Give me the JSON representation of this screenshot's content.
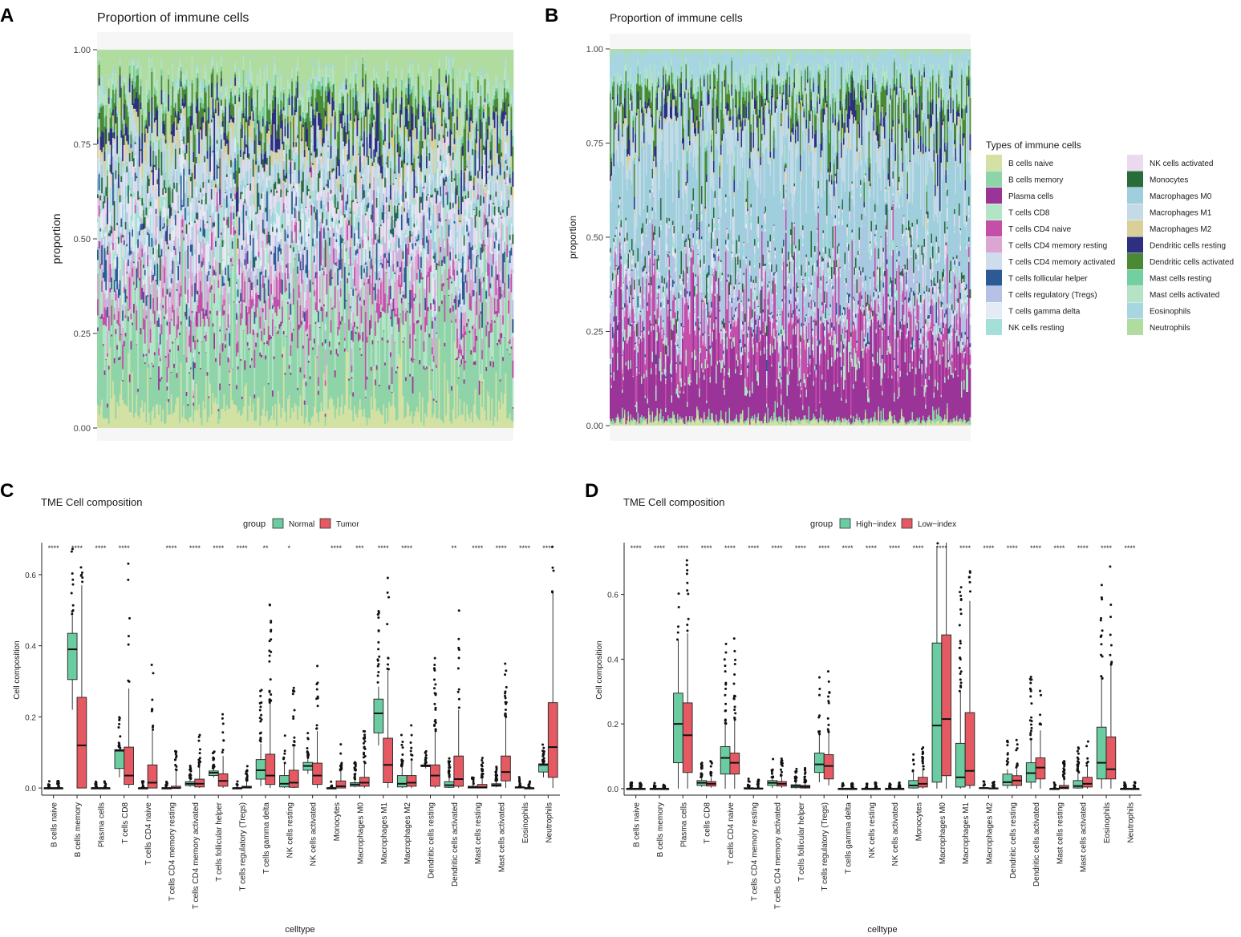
{
  "panel_labels": [
    "A",
    "B",
    "C",
    "D"
  ],
  "cell_types": [
    "B cells naive",
    "B cells memory",
    "Plasma cells",
    "T cells CD8",
    "T cells CD4 naive",
    "T cells CD4 memory resting",
    "T cells CD4 memory activated",
    "T cells follicular helper",
    "T cells regulatory (Tregs)",
    "T cells gamma delta",
    "NK cells resting",
    "NK cells activated",
    "Monocytes",
    "Macrophages M0",
    "Macrophages M1",
    "Macrophages M2",
    "Dendritic cells resting",
    "Dendritic cells activated",
    "Mast cells resting",
    "Mast cells activated",
    "Eosinophils",
    "Neutrophils"
  ],
  "legend": {
    "title": "Types of immune cells",
    "colors": [
      "#d3e1a3",
      "#8fd4a8",
      "#9a3498",
      "#b2e4c6",
      "#c44fab",
      "#dba6d2",
      "#cfdcee",
      "#2c5a94",
      "#b5c2e6",
      "#e3ecf5",
      "#a5dfda",
      "#ead9ef",
      "#2a6b3a",
      "#9fcedc",
      "#c2dbe6",
      "#dacf98",
      "#2e2f80",
      "#4a8a34",
      "#72cf9f",
      "#b6e3c5",
      "#a6d6e2",
      "#b0dca0"
    ]
  },
  "chart_data": [
    {
      "panel": "A",
      "type": "bar",
      "stacked": true,
      "title": "Proportion of immune cells",
      "xlabel": "",
      "ylabel": "proportion",
      "yticks": [
        "0.00",
        "0.25",
        "0.50",
        "0.75",
        "1.00"
      ],
      "ylim": [
        0,
        1
      ],
      "n_samples": 300,
      "mean_composition": [
        0.06,
        0.2,
        0.01,
        0.09,
        0.04,
        0.06,
        0.03,
        0.03,
        0.02,
        0.05,
        0.03,
        0.05,
        0.02,
        0.03,
        0.08,
        0.03,
        0.04,
        0.05,
        0.02,
        0.04,
        0.01,
        0.1
      ]
    },
    {
      "panel": "B",
      "type": "bar",
      "stacked": true,
      "title": "Proportion of immune cells",
      "xlabel": "",
      "ylabel": "proportion",
      "yticks": [
        "0.00",
        "0.25",
        "0.50",
        "0.75",
        "1.00"
      ],
      "ylim": [
        0,
        1
      ],
      "n_samples": 300,
      "mean_composition": [
        0.01,
        0.01,
        0.17,
        0.02,
        0.09,
        0.01,
        0.02,
        0.01,
        0.07,
        0.01,
        0.02,
        0.02,
        0.02,
        0.25,
        0.12,
        0.01,
        0.03,
        0.06,
        0.01,
        0.03,
        0.08,
        0.01
      ]
    },
    {
      "panel": "C",
      "type": "box",
      "title": "TME Cell composition",
      "xlabel": "celltype",
      "ylabel": "Cell composition",
      "yticks": [
        "0.0",
        "0.2",
        "0.4",
        "0.6"
      ],
      "ylim": [
        -0.02,
        0.69
      ],
      "legend_title": "group",
      "groups": [
        {
          "name": "Normal",
          "color": "#6ccca1"
        },
        {
          "name": "Tumor",
          "color": "#e55a62"
        }
      ],
      "significance": [
        "****",
        "****",
        "****",
        "****",
        "",
        "****",
        "****",
        "****",
        "****",
        "**",
        "*",
        "",
        "****",
        "***",
        "****",
        "****",
        "",
        "**",
        "****",
        "****",
        "****",
        "****"
      ],
      "series": [
        {
          "name": "Normal",
          "boxes": [
            [
              0,
              0,
              0,
              0,
              0
            ],
            [
              0.22,
              0.305,
              0.39,
              0.435,
              0.485
            ],
            [
              0,
              0,
              0,
              0,
              0
            ],
            [
              0.03,
              0.055,
              0.105,
              0.108,
              0.11
            ],
            [
              0,
              0,
              0,
              0,
              0
            ],
            [
              0,
              0,
              0,
              0,
              0
            ],
            [
              0.003,
              0.007,
              0.012,
              0.018,
              0.025
            ],
            [
              0.03,
              0.035,
              0.043,
              0.048,
              0.055
            ],
            [
              0,
              0,
              0,
              0,
              0
            ],
            [
              0.005,
              0.025,
              0.05,
              0.08,
              0.125
            ],
            [
              0,
              0.003,
              0.012,
              0.035,
              0.07
            ],
            [
              0.04,
              0.05,
              0.062,
              0.072,
              0.085
            ],
            [
              0,
              0,
              0,
              0,
              0
            ],
            [
              0.002,
              0.005,
              0.01,
              0.015,
              0.025
            ],
            [
              0.12,
              0.155,
              0.21,
              0.25,
              0.285
            ],
            [
              0,
              0.003,
              0.012,
              0.035,
              0.06
            ],
            [
              0.055,
              0.06,
              0.063,
              0.065,
              0.068
            ],
            [
              0,
              0.002,
              0.008,
              0.018,
              0.03
            ],
            [
              0,
              0,
              0.002,
              0.005,
              0.01
            ],
            [
              0.002,
              0.005,
              0.008,
              0.012,
              0.02
            ],
            [
              0,
              0,
              0.002,
              0.003,
              0.005
            ],
            [
              0.03,
              0.045,
              0.065,
              0.068,
              0.07
            ]
          ]
        },
        {
          "name": "Tumor",
          "boxes": [
            [
              0,
              0,
              0,
              0,
              0
            ],
            [
              0,
              0,
              0.12,
              0.255,
              0.57
            ],
            [
              0,
              0,
              0,
              0,
              0
            ],
            [
              0,
              0.01,
              0.035,
              0.115,
              0.28
            ],
            [
              0,
              0,
              0.015,
              0.065,
              0.16
            ],
            [
              0,
              0,
              0,
              0.005,
              0.05
            ],
            [
              0,
              0.003,
              0.012,
              0.025,
              0.06
            ],
            [
              0,
              0.005,
              0.02,
              0.04,
              0.09
            ],
            [
              0,
              0,
              0.002,
              0.005,
              0.02
            ],
            [
              0,
              0.01,
              0.035,
              0.095,
              0.24
            ],
            [
              0,
              0.002,
              0.015,
              0.05,
              0.12
            ],
            [
              0,
              0.01,
              0.035,
              0.07,
              0.16
            ],
            [
              0,
              0,
              0.005,
              0.02,
              0.05
            ],
            [
              0,
              0.005,
              0.015,
              0.03,
              0.07
            ],
            [
              0,
              0.015,
              0.065,
              0.14,
              0.33
            ],
            [
              0,
              0.005,
              0.015,
              0.035,
              0.08
            ],
            [
              0,
              0.005,
              0.035,
              0.065,
              0.16
            ],
            [
              0,
              0.005,
              0.025,
              0.09,
              0.22
            ],
            [
              0,
              0,
              0.002,
              0.01,
              0.03
            ],
            [
              0,
              0.02,
              0.045,
              0.09,
              0.2
            ],
            [
              0,
              0,
              0,
              0,
              0
            ],
            [
              0,
              0.03,
              0.115,
              0.24,
              0.55
            ]
          ]
        }
      ]
    },
    {
      "panel": "D",
      "type": "box",
      "title": "TME Cell composition",
      "xlabel": "celltype",
      "ylabel": "Cell composition",
      "yticks": [
        "0.0",
        "0.2",
        "0.4",
        "0.6"
      ],
      "ylim": [
        -0.02,
        0.76
      ],
      "legend_title": "group",
      "groups": [
        {
          "name": "High−index",
          "color": "#6ccca1"
        },
        {
          "name": "Low−index",
          "color": "#e55a62"
        }
      ],
      "significance": [
        "****",
        "****",
        "****",
        "****",
        "****",
        "****",
        "****",
        "****",
        "****",
        "****",
        "****",
        "****",
        "****",
        "****",
        "****",
        "****",
        "****",
        "****",
        "****",
        "****",
        "****",
        "****"
      ],
      "series": [
        {
          "name": "High−index",
          "boxes": [
            [
              0,
              0,
              0,
              0,
              0
            ],
            [
              0,
              0,
              0,
              0,
              0
            ],
            [
              0,
              0.08,
              0.2,
              0.295,
              0.46
            ],
            [
              0.005,
              0.01,
              0.018,
              0.025,
              0.035
            ],
            [
              0,
              0.045,
              0.095,
              0.13,
              0.2
            ],
            [
              0,
              0,
              0,
              0.003,
              0.005
            ],
            [
              0.002,
              0.01,
              0.018,
              0.025,
              0.035
            ],
            [
              0,
              0.003,
              0.008,
              0.012,
              0.02
            ],
            [
              0.02,
              0.05,
              0.075,
              0.11,
              0.165
            ],
            [
              0,
              0,
              0,
              0,
              0
            ],
            [
              0,
              0,
              0,
              0,
              0
            ],
            [
              0,
              0,
              0,
              0,
              0
            ],
            [
              0,
              0.002,
              0.01,
              0.025,
              0.05
            ],
            [
              0,
              0.02,
              0.195,
              0.45,
              0.75
            ],
            [
              0,
              0.005,
              0.035,
              0.14,
              0.3
            ],
            [
              0,
              0.001,
              0.002,
              0.003,
              0.005
            ],
            [
              0,
              0.01,
              0.02,
              0.045,
              0.06
            ],
            [
              0,
              0.02,
              0.048,
              0.08,
              0.15
            ],
            [
              0,
              0,
              0,
              0,
              0
            ],
            [
              0,
              0.002,
              0.008,
              0.025,
              0.05
            ],
            [
              0,
              0.03,
              0.08,
              0.19,
              0.34
            ],
            [
              0,
              0,
              0,
              0,
              0
            ]
          ]
        },
        {
          "name": "Low−index",
          "boxes": [
            [
              0,
              0,
              0,
              0,
              0
            ],
            [
              0,
              0,
              0,
              0,
              0
            ],
            [
              0,
              0.05,
              0.165,
              0.265,
              0.48
            ],
            [
              0.003,
              0.008,
              0.015,
              0.022,
              0.035
            ],
            [
              0,
              0.045,
              0.08,
              0.11,
              0.21
            ],
            [
              0,
              0,
              0,
              0.002,
              0.005
            ],
            [
              0.002,
              0.008,
              0.015,
              0.022,
              0.035
            ],
            [
              0,
              0.002,
              0.006,
              0.01,
              0.02
            ],
            [
              0.01,
              0.03,
              0.07,
              0.105,
              0.175
            ],
            [
              0,
              0,
              0,
              0,
              0
            ],
            [
              0,
              0,
              0,
              0,
              0
            ],
            [
              0,
              0,
              0,
              0,
              0
            ],
            [
              0,
              0.005,
              0.015,
              0.035,
              0.06
            ],
            [
              0,
              0.04,
              0.215,
              0.475,
              0.76
            ],
            [
              0,
              0.01,
              0.055,
              0.235,
              0.58
            ],
            [
              0,
              0,
              0.001,
              0.002,
              0.003
            ],
            [
              0,
              0.01,
              0.025,
              0.04,
              0.06
            ],
            [
              0,
              0.03,
              0.065,
              0.095,
              0.18
            ],
            [
              0,
              0,
              0.003,
              0.01,
              0.03
            ],
            [
              0,
              0.005,
              0.015,
              0.035,
              0.07
            ],
            [
              0,
              0.03,
              0.06,
              0.16,
              0.38
            ],
            [
              0,
              0,
              0,
              0,
              0
            ]
          ]
        }
      ]
    }
  ]
}
